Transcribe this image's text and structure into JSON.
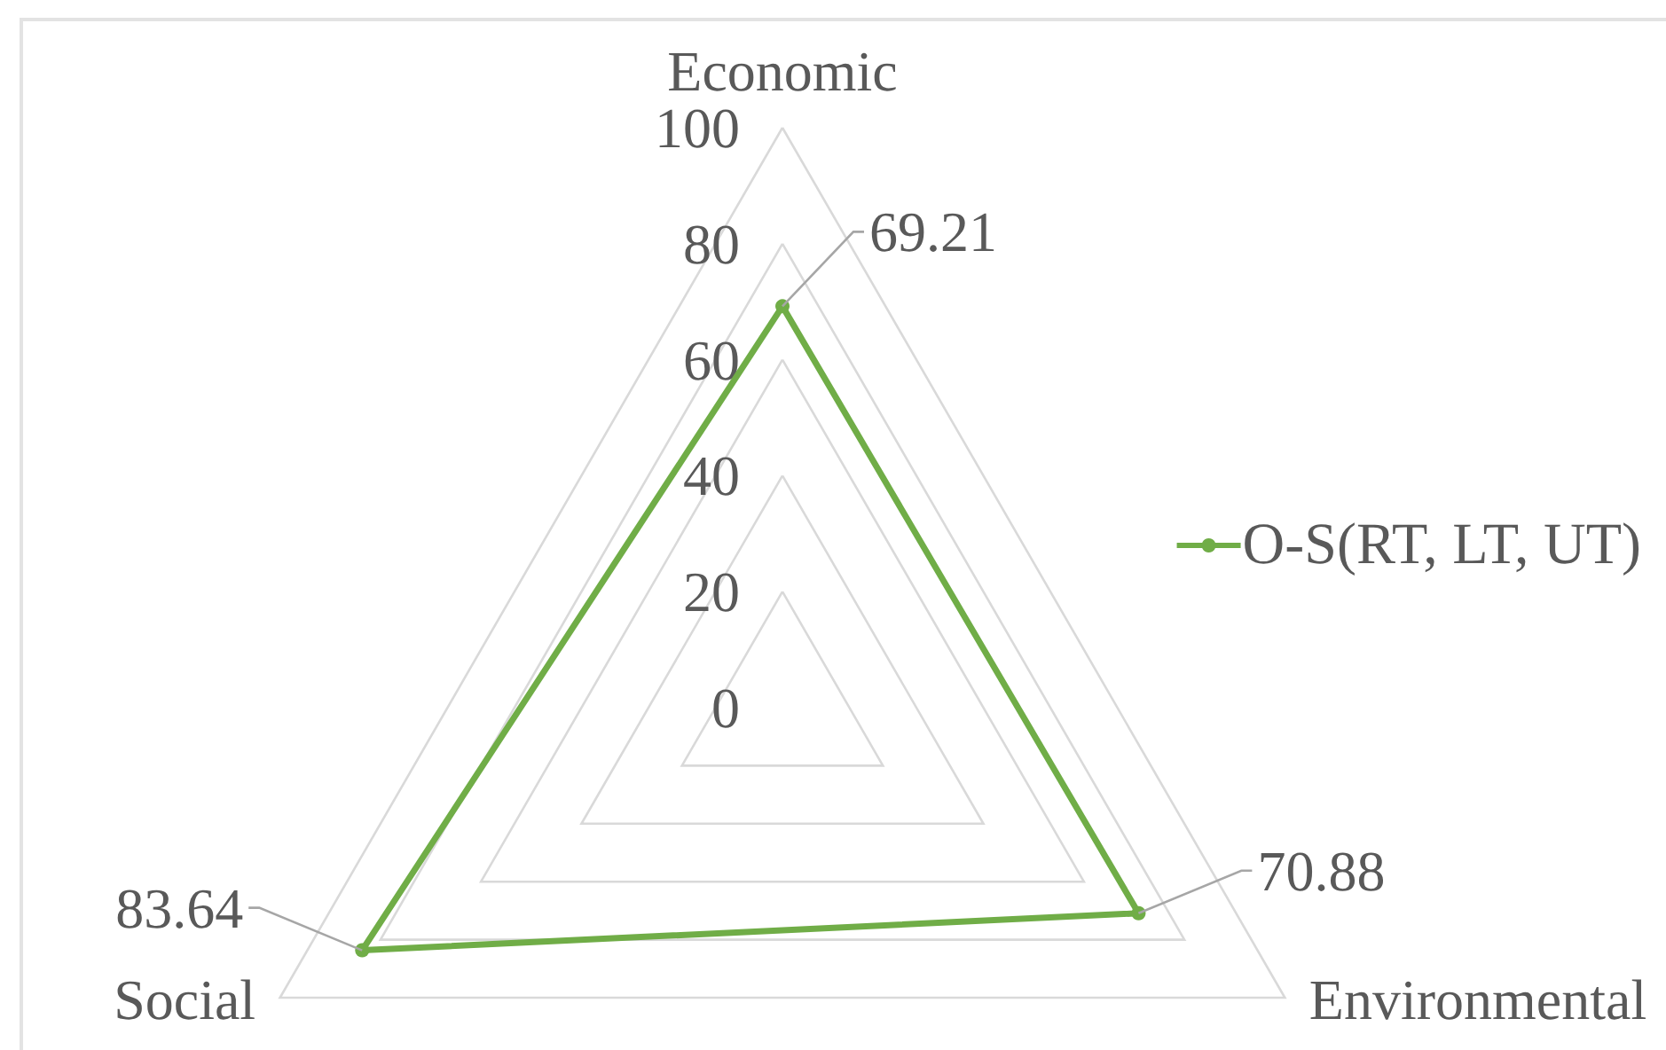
{
  "chart_data": {
    "type": "radar",
    "categories": [
      "Economic",
      "Environmental",
      "Social"
    ],
    "series": [
      {
        "name": "O-S(RT, LT, UT)",
        "color": "#70ad47",
        "values": [
          69.21,
          70.88,
          83.64
        ]
      }
    ],
    "ylim": [
      0,
      100
    ],
    "yticks": [
      0,
      20,
      40,
      60,
      80,
      100
    ],
    "grid": true,
    "data_labels": true,
    "legend": "right",
    "marker": "circle"
  }
}
